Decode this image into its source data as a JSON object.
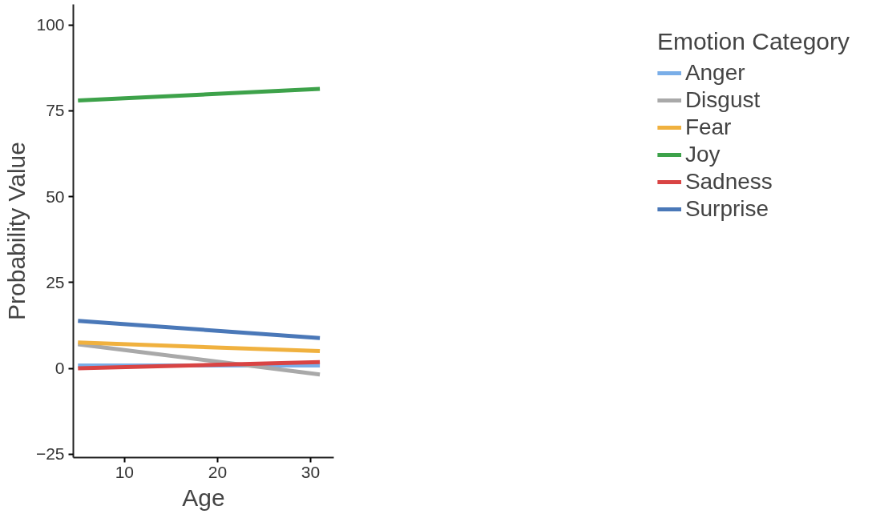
{
  "chart_data": {
    "type": "line",
    "xlabel": "Age",
    "ylabel": "Probability Value",
    "legend_title": "Emotion Category",
    "legend": "right",
    "grid": false,
    "marker": "none",
    "line_style": "solid",
    "x": [
      5,
      31
    ],
    "xlim": [
      4.5,
      32.5
    ],
    "xticks": [
      10,
      20,
      30
    ],
    "ylim": [
      -26,
      106
    ],
    "yticks": [
      -25,
      0,
      25,
      50,
      75,
      100
    ],
    "series": [
      {
        "name": "Anger",
        "color": "#7aaee8",
        "values": [
          0.8,
          0.8
        ]
      },
      {
        "name": "Disgust",
        "color": "#a9a9a9",
        "values": [
          7,
          -1.8
        ]
      },
      {
        "name": "Fear",
        "color": "#f0b13f",
        "values": [
          7.5,
          5
        ]
      },
      {
        "name": "Joy",
        "color": "#3da24a",
        "values": [
          78,
          81.4
        ]
      },
      {
        "name": "Sadness",
        "color": "#d94444",
        "values": [
          0,
          1.8
        ]
      },
      {
        "name": "Surprise",
        "color": "#4a78b8",
        "values": [
          13.8,
          8.8
        ]
      }
    ]
  }
}
